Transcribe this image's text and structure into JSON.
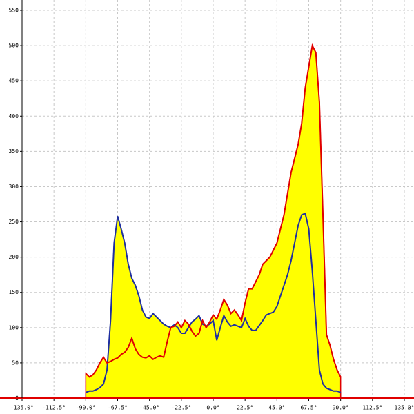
{
  "chart_data": {
    "type": "area",
    "x": [
      -90,
      -87.5,
      -85,
      -82.5,
      -80,
      -77.5,
      -75,
      -72.5,
      -70,
      -67.5,
      -65,
      -62.5,
      -60,
      -57.5,
      -55,
      -52.5,
      -50,
      -47.5,
      -45,
      -42.5,
      -40,
      -37.5,
      -35,
      -32.5,
      -30,
      -27.5,
      -25,
      -22.5,
      -20,
      -17.5,
      -15,
      -12.5,
      -10,
      -7.5,
      -5,
      -2.5,
      0,
      2.5,
      5,
      7.5,
      10,
      12.5,
      15,
      17.5,
      20,
      22.5,
      25,
      27.5,
      30,
      32.5,
      35,
      37.5,
      40,
      42.5,
      45,
      47.5,
      50,
      52.5,
      55,
      57.5,
      60,
      62.5,
      65,
      67.5,
      70,
      72.5,
      75,
      77.5,
      80,
      82.5,
      85,
      87.5,
      90
    ],
    "series": [
      {
        "color": "#1f2fa0",
        "values": [
          8,
          10,
          10,
          12,
          15,
          20,
          40,
          110,
          220,
          258,
          240,
          220,
          190,
          170,
          160,
          145,
          125,
          115,
          113,
          120,
          115,
          110,
          105,
          102,
          100,
          104,
          100,
          92,
          92,
          100,
          108,
          112,
          117,
          105,
          102,
          105,
          110,
          82,
          100,
          117,
          108,
          102,
          104,
          102,
          100,
          113,
          102,
          96,
          96,
          103,
          110,
          118,
          120,
          122,
          130,
          145,
          160,
          175,
          195,
          220,
          245,
          260,
          262,
          240,
          180,
          110,
          40,
          20,
          14,
          12,
          10,
          10,
          8
        ]
      },
      {
        "color": "#e00000",
        "values": [
          35,
          30,
          33,
          40,
          50,
          58,
          50,
          52,
          55,
          57,
          62,
          65,
          72,
          85,
          70,
          62,
          58,
          57,
          60,
          55,
          58,
          60,
          58,
          80,
          100,
          102,
          108,
          100,
          110,
          105,
          95,
          88,
          92,
          110,
          100,
          108,
          118,
          112,
          125,
          140,
          132,
          120,
          125,
          118,
          110,
          135,
          155,
          155,
          165,
          175,
          190,
          195,
          200,
          210,
          220,
          240,
          260,
          290,
          320,
          340,
          360,
          390,
          440,
          470,
          500,
          490,
          420,
          260,
          90,
          75,
          55,
          40,
          30
        ]
      }
    ],
    "fill": "#ffff00",
    "grid": true,
    "xlim": [
      -135,
      135
    ],
    "ylim": [
      0,
      550
    ],
    "xticks": [
      {
        "value": -135,
        "label": "-135.0°"
      },
      {
        "value": -112.5,
        "label": "-112.5°"
      },
      {
        "value": -90,
        "label": "-90.0°"
      },
      {
        "value": -67.5,
        "label": "-67.5°"
      },
      {
        "value": -45,
        "label": "-45.0°"
      },
      {
        "value": -22.5,
        "label": "-22.5°"
      },
      {
        "value": 0,
        "label": "0.0°"
      },
      {
        "value": 22.5,
        "label": "22.5°"
      },
      {
        "value": 45,
        "label": "45.0°"
      },
      {
        "value": 67.5,
        "label": "67.5°"
      },
      {
        "value": 90,
        "label": "90.0°"
      },
      {
        "value": 112.5,
        "label": "112.5°"
      },
      {
        "value": 135,
        "label": "135.0°"
      }
    ],
    "yticks": [
      0,
      50,
      100,
      150,
      200,
      250,
      300,
      350,
      400,
      450,
      500,
      550
    ]
  }
}
